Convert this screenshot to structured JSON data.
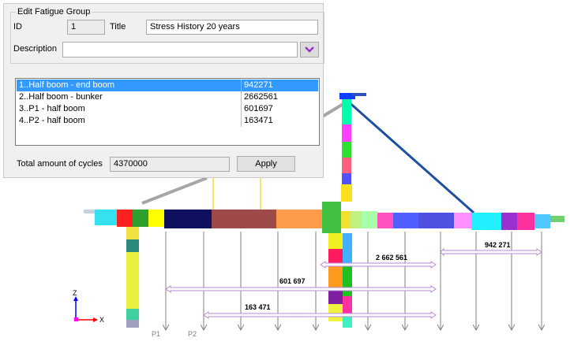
{
  "dialog": {
    "group_title": "Edit Fatigue Group",
    "id_label": "ID",
    "id_value": "1",
    "title_label": "Title",
    "title_value": "Stress History 20 years",
    "description_label": "Description",
    "description_value": "",
    "description_dropdown_icon": "chevron-down-icon",
    "list": [
      {
        "name": "1..Half boom - end boom",
        "cycles": "942271",
        "selected": true
      },
      {
        "name": "2..Half boom - bunker",
        "cycles": "2662561",
        "selected": false
      },
      {
        "name": "3..P1 - half boom",
        "cycles": "601697",
        "selected": false
      },
      {
        "name": "4..P2 - half boom",
        "cycles": "163471",
        "selected": false
      }
    ],
    "total_label": "Total amount of cycles",
    "total_value": "4370000",
    "apply_label": "Apply"
  },
  "viewport": {
    "axis_z": "Z",
    "axis_x": "X",
    "label_p1": "P1",
    "label_p2": "P2",
    "span_labels": [
      "942 271",
      "2 662 561",
      "601 697",
      "163 471"
    ]
  },
  "colors": {
    "selection": "#3399ff",
    "cable": "#1f4f9f",
    "span_arrow": "#b48ad6",
    "load_arrow": "#808080"
  }
}
